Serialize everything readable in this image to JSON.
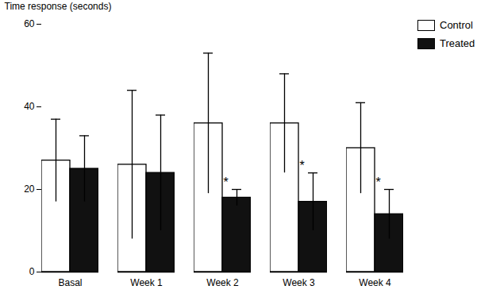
{
  "chart_data": {
    "type": "bar",
    "categories": [
      "Basal",
      "Week 1",
      "Week 2",
      "Week 3",
      "Week 4"
    ],
    "series": [
      {
        "name": "Control",
        "color": "#ffffff",
        "values": [
          27,
          26,
          36,
          36,
          30
        ],
        "errors": [
          10,
          18,
          17,
          12,
          11
        ]
      },
      {
        "name": "Treated",
        "color": "#111111",
        "values": [
          25,
          24,
          18,
          17,
          14
        ],
        "errors": [
          8,
          14,
          2,
          7,
          6
        ]
      }
    ],
    "ylabel": "Time response (seconds)",
    "ylim": [
      0,
      60
    ],
    "yticks": [
      0,
      20,
      40,
      60
    ],
    "grid": false,
    "legend": "right",
    "annotations": [
      {
        "text": "*",
        "category": "Week 2",
        "series": "Treated"
      },
      {
        "text": "*",
        "category": "Week 3",
        "series": "Treated"
      },
      {
        "text": "*",
        "category": "Week 4",
        "series": "Treated"
      }
    ]
  }
}
